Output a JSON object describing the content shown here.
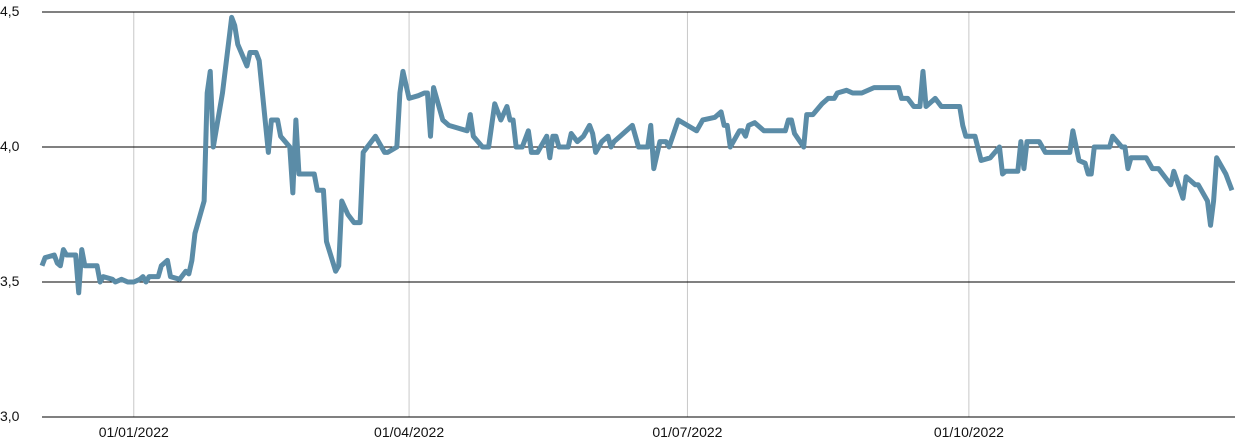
{
  "chart_data": {
    "type": "line",
    "color": "#5b8ca7",
    "grid": true,
    "x": [
      "2021-12-02",
      "2021-12-03",
      "2021-12-06",
      "2021-12-07",
      "2021-12-08",
      "2021-12-09",
      "2021-12-10",
      "2021-12-13",
      "2021-12-14",
      "2021-12-15",
      "2021-12-16",
      "2021-12-20",
      "2021-12-21",
      "2021-12-22",
      "2021-12-25",
      "2021-12-26",
      "2021-12-28",
      "2021-12-30",
      "2022-01-01",
      "2022-01-03",
      "2022-01-04",
      "2022-01-05",
      "2022-01-06",
      "2022-01-09",
      "2022-01-10",
      "2022-01-12",
      "2022-01-13",
      "2022-01-16",
      "2022-01-18",
      "2022-01-19",
      "2022-01-20",
      "2022-01-21",
      "2022-01-24",
      "2022-01-25",
      "2022-01-26",
      "2022-01-27",
      "2022-01-30",
      "2022-02-02",
      "2022-02-03",
      "2022-02-04",
      "2022-02-07",
      "2022-02-08",
      "2022-02-10",
      "2022-02-11",
      "2022-02-14",
      "2022-02-15",
      "2022-02-17",
      "2022-02-18",
      "2022-02-21",
      "2022-02-22",
      "2022-02-23",
      "2022-02-24",
      "2022-03-01",
      "2022-03-02",
      "2022-03-04",
      "2022-03-05",
      "2022-03-08",
      "2022-03-09",
      "2022-03-10",
      "2022-03-12",
      "2022-03-14",
      "2022-03-16",
      "2022-03-17",
      "2022-03-21",
      "2022-03-23",
      "2022-03-24",
      "2022-03-25",
      "2022-03-28",
      "2022-03-29",
      "2022-03-30",
      "2022-04-01",
      "2022-04-04",
      "2022-04-06",
      "2022-04-07",
      "2022-04-08",
      "2022-04-09",
      "2022-04-12",
      "2022-04-14",
      "2022-04-20",
      "2022-04-21",
      "2022-04-22",
      "2022-04-25",
      "2022-04-27",
      "2022-04-29",
      "2022-05-01",
      "2022-05-03",
      "2022-05-04",
      "2022-05-05",
      "2022-05-06",
      "2022-05-08",
      "2022-05-10",
      "2022-05-11",
      "2022-05-13",
      "2022-05-16",
      "2022-05-17",
      "2022-05-18",
      "2022-05-19",
      "2022-05-20",
      "2022-05-23",
      "2022-05-24",
      "2022-05-26",
      "2022-05-28",
      "2022-05-30",
      "2022-05-31",
      "2022-06-01",
      "2022-06-03",
      "2022-06-05",
      "2022-06-06",
      "2022-06-07",
      "2022-06-09",
      "2022-06-13",
      "2022-06-15",
      "2022-06-18",
      "2022-06-19",
      "2022-06-20",
      "2022-06-22",
      "2022-06-24",
      "2022-06-25",
      "2022-06-28",
      "2022-07-04",
      "2022-07-06",
      "2022-07-10",
      "2022-07-12",
      "2022-07-13",
      "2022-07-14",
      "2022-07-15",
      "2022-07-18",
      "2022-07-19",
      "2022-07-20",
      "2022-07-21",
      "2022-07-23",
      "2022-07-26",
      "2022-08-02",
      "2022-08-03",
      "2022-08-04",
      "2022-08-05",
      "2022-08-08",
      "2022-08-09",
      "2022-08-11",
      "2022-08-14",
      "2022-08-16",
      "2022-08-18",
      "2022-08-19",
      "2022-08-22",
      "2022-08-24",
      "2022-08-27",
      "2022-08-31",
      "2022-09-08",
      "2022-09-09",
      "2022-09-11",
      "2022-09-13",
      "2022-09-15",
      "2022-09-16",
      "2022-09-17",
      "2022-09-20",
      "2022-09-22",
      "2022-09-28",
      "2022-09-29",
      "2022-09-30",
      "2022-10-03",
      "2022-10-05",
      "2022-10-08",
      "2022-10-11",
      "2022-10-12",
      "2022-10-13",
      "2022-10-17",
      "2022-10-18",
      "2022-10-19",
      "2022-10-20",
      "2022-10-24",
      "2022-10-26",
      "2022-11-03",
      "2022-11-04",
      "2022-11-06",
      "2022-11-08",
      "2022-11-09",
      "2022-11-10",
      "2022-11-11",
      "2022-11-16",
      "2022-11-17",
      "2022-11-20",
      "2022-11-21",
      "2022-11-22",
      "2022-11-23",
      "2022-11-28",
      "2022-11-30",
      "2022-12-02",
      "2022-12-06",
      "2022-12-07",
      "2022-12-10",
      "2022-12-11",
      "2022-12-14",
      "2022-12-15",
      "2022-12-18",
      "2022-12-19",
      "2022-12-20",
      "2022-12-21",
      "2022-12-24",
      "2022-12-26"
    ],
    "values": [
      3.56,
      3.59,
      3.6,
      3.57,
      3.56,
      3.62,
      3.6,
      3.6,
      3.46,
      3.62,
      3.56,
      3.56,
      3.5,
      3.52,
      3.51,
      3.5,
      3.51,
      3.5,
      3.5,
      3.51,
      3.52,
      3.5,
      3.52,
      3.52,
      3.56,
      3.58,
      3.52,
      3.51,
      3.54,
      3.53,
      3.58,
      3.68,
      3.8,
      4.2,
      4.28,
      4.0,
      4.2,
      4.48,
      4.45,
      4.38,
      4.3,
      4.35,
      4.35,
      4.32,
      3.98,
      4.1,
      4.1,
      4.04,
      4.0,
      3.83,
      4.1,
      3.9,
      3.9,
      3.84,
      3.84,
      3.65,
      3.54,
      3.56,
      3.8,
      3.75,
      3.72,
      3.72,
      3.98,
      4.04,
      4.0,
      3.98,
      3.98,
      4.0,
      4.2,
      4.28,
      4.18,
      4.19,
      4.2,
      4.2,
      4.04,
      4.22,
      4.1,
      4.08,
      4.06,
      4.12,
      4.04,
      4.0,
      4.0,
      4.16,
      4.1,
      4.15,
      4.1,
      4.1,
      4.0,
      4.0,
      4.06,
      3.98,
      3.98,
      4.04,
      3.96,
      4.04,
      4.04,
      4.0,
      4.0,
      4.05,
      4.02,
      4.04,
      4.08,
      4.05,
      3.98,
      4.02,
      4.04,
      4.0,
      4.02,
      4.04,
      4.08,
      4.0,
      4.0,
      4.08,
      3.92,
      4.02,
      4.02,
      4.0,
      4.1,
      4.06,
      4.1,
      4.11,
      4.13,
      4.08,
      4.08,
      4.0,
      4.06,
      4.06,
      4.04,
      4.08,
      4.09,
      4.06,
      4.06,
      4.1,
      4.1,
      4.05,
      4.0,
      4.12,
      4.12,
      4.16,
      4.18,
      4.18,
      4.2,
      4.21,
      4.2,
      4.2,
      4.22,
      4.22,
      4.18,
      4.18,
      4.15,
      4.15,
      4.28,
      4.15,
      4.18,
      4.15,
      4.15,
      4.08,
      4.04,
      4.04,
      3.95,
      3.96,
      4.0,
      3.9,
      3.91,
      3.91,
      4.02,
      3.92,
      4.02,
      4.02,
      3.98,
      3.98,
      4.06,
      3.95,
      3.94,
      3.9,
      3.9,
      4.0,
      4.0,
      4.04,
      4.0,
      4.0,
      3.92,
      3.96,
      3.96,
      3.92,
      3.92,
      3.86,
      3.91,
      3.81,
      3.89,
      3.86,
      3.86,
      3.8,
      3.71,
      3.8,
      3.96,
      3.9,
      3.84
    ],
    "xlim": [
      "2021-12-02",
      "2022-12-27"
    ],
    "xticks": [
      {
        "value": "2022-01-01",
        "label": "01/01/2022"
      },
      {
        "value": "2022-04-01",
        "label": "01/04/2022"
      },
      {
        "value": "2022-07-01",
        "label": "01/07/2022"
      },
      {
        "value": "2022-10-01",
        "label": "01/10/2022"
      }
    ],
    "ylim": [
      3.0,
      4.5
    ],
    "yticks": [
      {
        "value": 3.0,
        "label": "3,0"
      },
      {
        "value": 3.5,
        "label": "3,5"
      },
      {
        "value": 4.0,
        "label": "4,0"
      },
      {
        "value": 4.5,
        "label": "4,5"
      }
    ]
  }
}
